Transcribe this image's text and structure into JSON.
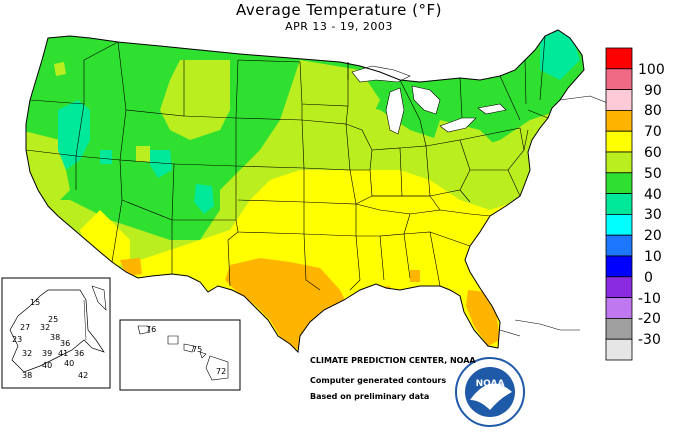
{
  "title": "Average Temperature (°F)",
  "subtitle": "APR 13 - 19, 2003",
  "legend": {
    "items": [
      {
        "label": "100",
        "color": "#ff0000"
      },
      {
        "label": "90",
        "color": "#f06a86"
      },
      {
        "label": "80",
        "color": "#ffcad8"
      },
      {
        "label": "70",
        "color": "#ffb400"
      },
      {
        "label": "60",
        "color": "#ffff00"
      },
      {
        "label": "50",
        "color": "#bbee1e"
      },
      {
        "label": "40",
        "color": "#30e030"
      },
      {
        "label": "30",
        "color": "#00e89a"
      },
      {
        "label": "20",
        "color": "#00ffff"
      },
      {
        "label": "10",
        "color": "#1e78ff"
      },
      {
        "label": "0",
        "color": "#0000ff"
      },
      {
        "label": "-10",
        "color": "#8a2be2"
      },
      {
        "label": "-20",
        "color": "#c078f0"
      },
      {
        "label": "-30",
        "color": "#a0a0a0"
      },
      {
        "label": "",
        "color": "#e6e6e6"
      }
    ]
  },
  "credits": {
    "agency": "CLIMATE PREDICTION CENTER, NOAA",
    "line1": "Computer generated contours",
    "line2": "Based on preliminary data"
  },
  "noaa_logo": {
    "text": "NOAA",
    "ring_text": "NATIONAL OCEANIC AND ATMOSPHERIC ADMINISTRATION · U.S. DEPARTMENT OF COMMERCE"
  },
  "alaska_labels": [
    "15",
    "27",
    "32",
    "25",
    "23",
    "38",
    "36",
    "32",
    "39",
    "41",
    "36",
    "38",
    "40",
    "40",
    "42"
  ],
  "hawaii_labels": [
    "76",
    "75",
    "72"
  ]
}
